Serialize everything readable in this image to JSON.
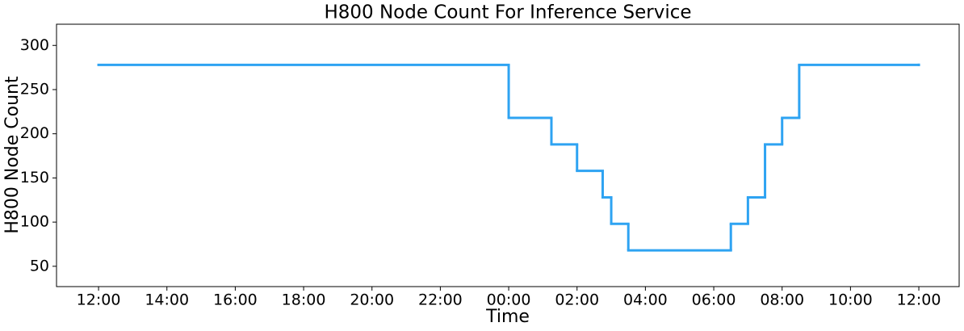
{
  "chart_data": {
    "type": "line",
    "title": "H800 Node Count For Inference Service",
    "x_label": "Time",
    "y_label": "H800 Node Count",
    "drawstyle": "steps-post",
    "x": [
      0,
      12,
      13.25,
      14,
      14.75,
      15,
      15.5,
      18.5,
      19,
      19.5,
      20,
      20.5,
      24
    ],
    "series": [
      {
        "name": "H800 Node Count",
        "color": "#2ea3f2",
        "values": [
          278,
          218,
          188,
          158,
          128,
          98,
          68,
          98,
          128,
          188,
          218,
          278,
          278
        ]
      }
    ],
    "xlim": [
      -1.23,
      25.18
    ],
    "xticks": [
      {
        "value": 0,
        "label": "12:00"
      },
      {
        "value": 2,
        "label": "14:00"
      },
      {
        "value": 4,
        "label": "16:00"
      },
      {
        "value": 6,
        "label": "18:00"
      },
      {
        "value": 8,
        "label": "20:00"
      },
      {
        "value": 10,
        "label": "22:00"
      },
      {
        "value": 12,
        "label": "00:00"
      },
      {
        "value": 14,
        "label": "02:00"
      },
      {
        "value": 16,
        "label": "04:00"
      },
      {
        "value": 18,
        "label": "06:00"
      },
      {
        "value": 20,
        "label": "08:00"
      },
      {
        "value": 22,
        "label": "10:00"
      },
      {
        "value": 24,
        "label": "12:00"
      }
    ],
    "ylim": [
      27,
      324
    ],
    "yticks": [
      50,
      100,
      150,
      200,
      250,
      300
    ],
    "grid": false
  }
}
